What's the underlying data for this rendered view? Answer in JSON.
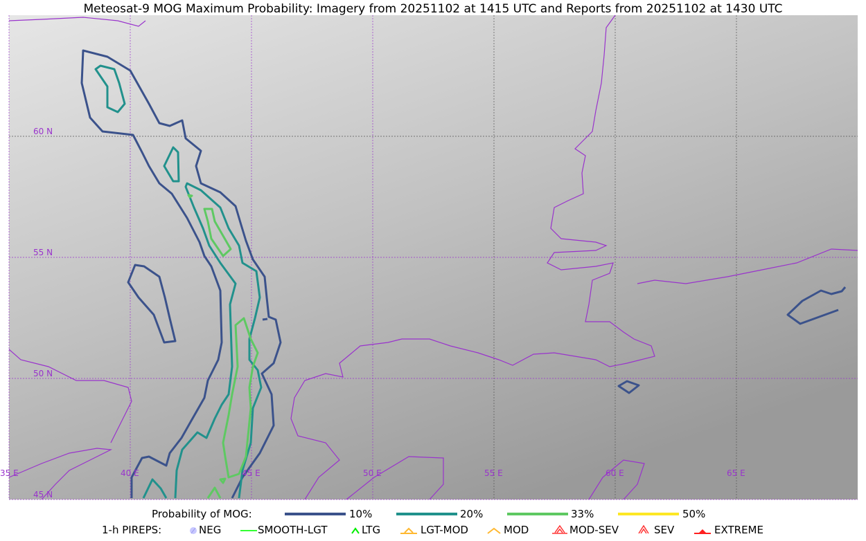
{
  "title": "Meteosat-9 MOG Maximum Probability: Imagery from 20251102 at 1415 UTC and Reports from 20251102 at 1430 UTC",
  "map": {
    "lat_labels": [
      "60 N",
      "55 N",
      "50 N",
      "45 N"
    ],
    "lon_labels": [
      "35 E",
      "40 E",
      "45 E",
      "50 E",
      "55 E",
      "60 E",
      "65 E"
    ],
    "grid_color": "#9933cc",
    "coast_color": "#9933cc"
  },
  "legend": {
    "probability_title": "Probability of MOG:",
    "probability_levels": [
      {
        "label": "10%",
        "color": "#3b528b"
      },
      {
        "label": "20%",
        "color": "#21918c"
      },
      {
        "label": "33%",
        "color": "#5ec962"
      },
      {
        "label": "50%",
        "color": "#fde725"
      }
    ],
    "pireps_title": "1-h PIREPS:",
    "pireps": [
      {
        "label": "NEG",
        "color": "#c8c8ff",
        "icon": "neg-circle-icon"
      },
      {
        "label": "SMOOTH-LGT",
        "color": "#33ff33",
        "icon": "line-icon"
      },
      {
        "label": "LTG",
        "color": "#00ee00",
        "icon": "caret-icon"
      },
      {
        "label": "LGT-MOD",
        "color": "#ffb830",
        "icon": "caret-bar-icon"
      },
      {
        "label": "MOD",
        "color": "#ffb830",
        "icon": "caret-icon"
      },
      {
        "label": "MOD-SEV",
        "color": "#ff3333",
        "icon": "double-caret-bar-icon"
      },
      {
        "label": "SEV",
        "color": "#ff3333",
        "icon": "double-caret-icon"
      },
      {
        "label": "EXTREME",
        "color": "#ff2020",
        "icon": "filled-triangle-icon"
      }
    ]
  }
}
